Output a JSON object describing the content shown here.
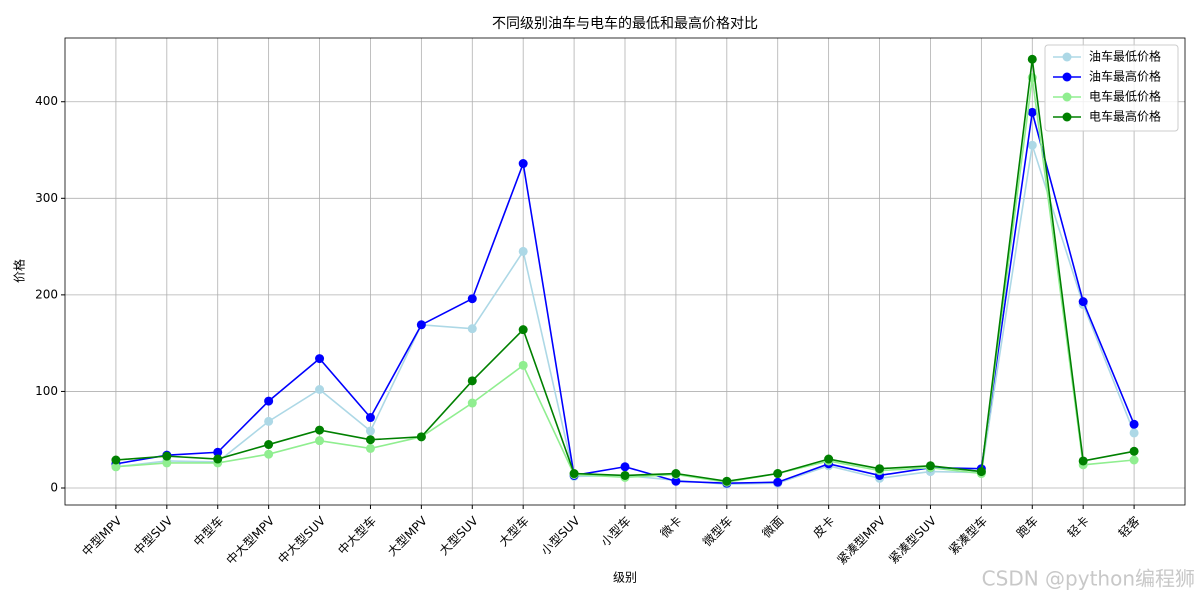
{
  "chart_data": {
    "type": "line",
    "title": "不同级别油车与电车的最低和最高价格对比",
    "x_label": "级别",
    "y_label": "价格",
    "categories": [
      "中型MPV",
      "中型SUV",
      "中型车",
      "中大型MPV",
      "中大型SUV",
      "中大型车",
      "大型MPV",
      "大型SUV",
      "大型车",
      "小型SUV",
      "小型车",
      "微卡",
      "微型车",
      "微面",
      "皮卡",
      "紧凑型MPV",
      "紧凑型SUV",
      "紧凑型车",
      "跑车",
      "轻卡",
      "轻客"
    ],
    "series": [
      {
        "name": "油车最低价格",
        "color": "#add8e6",
        "values": [
          22,
          28,
          27,
          69,
          102,
          59,
          169,
          165,
          245,
          12,
          13,
          8,
          4,
          5,
          23,
          10,
          17,
          16,
          355,
          190,
          57
        ]
      },
      {
        "name": "油车最高价格",
        "color": "#0000ff",
        "values": [
          25,
          34,
          37,
          90,
          134,
          73,
          169,
          196,
          336,
          13,
          22,
          7,
          5,
          6,
          25,
          13,
          21,
          20,
          389,
          193,
          66
        ]
      },
      {
        "name": "电车最低价格",
        "color": "#90ee90",
        "values": [
          22,
          26,
          26,
          35,
          49,
          41,
          53,
          88,
          127,
          14,
          11,
          14,
          6,
          15,
          28,
          18,
          21,
          15,
          425,
          24,
          29
        ]
      },
      {
        "name": "电车最高价格",
        "color": "#008000",
        "values": [
          29,
          33,
          30,
          45,
          60,
          50,
          53,
          111,
          164,
          15,
          13,
          15,
          7,
          15,
          30,
          20,
          23,
          17,
          444,
          28,
          38
        ]
      }
    ],
    "ylim": [
      -17.6,
      466
    ],
    "yticks": [
      0,
      100,
      200,
      300,
      400
    ],
    "grid": true,
    "legend": "upper right",
    "watermark": "CSDN @python编程狮"
  }
}
